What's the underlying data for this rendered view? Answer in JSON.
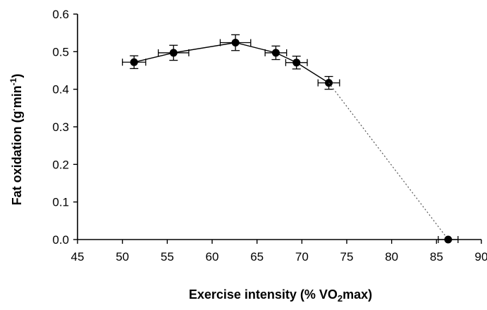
{
  "chart_data": {
    "type": "scatter",
    "title": "",
    "xlabel": {
      "prefix": "Exercise intensity (% VO",
      "sub": "2",
      "suffix": "max)"
    },
    "ylabel": {
      "prefix": "Fat oxidation (g",
      "dot": "·",
      "mid": "min",
      "sup": "-1",
      "suffix": ")"
    },
    "xlim": [
      45,
      90
    ],
    "ylim": [
      0,
      0.6
    ],
    "xticks": [
      "45",
      "50",
      "55",
      "60",
      "65",
      "70",
      "75",
      "80",
      "85",
      "90"
    ],
    "yticks": [
      "0.0",
      "0.1",
      "0.2",
      "0.3",
      "0.4",
      "0.5",
      "0.6"
    ],
    "grid": false,
    "legend": "none",
    "series": [
      {
        "points": [
          {
            "x": 51.3,
            "y": 0.472,
            "xerr": 1.3,
            "yerr": 0.017
          },
          {
            "x": 55.7,
            "y": 0.497,
            "xerr": 1.7,
            "yerr": 0.02
          },
          {
            "x": 62.6,
            "y": 0.524,
            "xerr": 1.7,
            "yerr": 0.021
          },
          {
            "x": 67.1,
            "y": 0.497,
            "xerr": 1.2,
            "yerr": 0.018
          },
          {
            "x": 69.4,
            "y": 0.471,
            "xerr": 1.2,
            "yerr": 0.017
          },
          {
            "x": 73.0,
            "y": 0.417,
            "xerr": 1.2,
            "yerr": 0.017
          }
        ],
        "line": "solid",
        "color": "#000000"
      },
      {
        "points": [
          {
            "x": 73.0,
            "y": 0.417
          },
          {
            "x": 86.3,
            "y": 0.0
          }
        ],
        "line": "dotted",
        "marker": false,
        "color": "#555555"
      },
      {
        "points": [
          {
            "x": 86.3,
            "y": 0.0,
            "xerr": 1.1,
            "yerr": 0
          }
        ],
        "line": "none",
        "color": "#000000"
      }
    ]
  }
}
